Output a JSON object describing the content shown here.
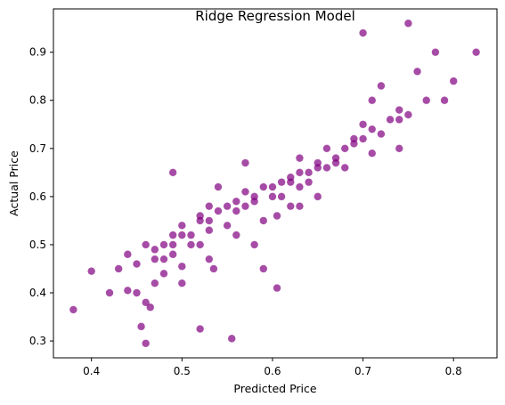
{
  "chart_data": {
    "type": "scatter",
    "title": "Ridge Regression Model",
    "xlabel": "Predicted Price",
    "ylabel": "Actual Price",
    "xlim": [
      0.358,
      0.848
    ],
    "ylim": [
      0.265,
      0.99
    ],
    "xticks": [
      0.4,
      0.5,
      0.6,
      0.7,
      0.8
    ],
    "xtick_labels": [
      "0.4",
      "0.5",
      "0.6",
      "0.7",
      "0.8"
    ],
    "yticks": [
      0.3,
      0.4,
      0.5,
      0.6,
      0.7,
      0.8,
      0.9
    ],
    "ytick_labels": [
      "0.3",
      "0.4",
      "0.5",
      "0.6",
      "0.7",
      "0.8",
      "0.9"
    ],
    "grid": false,
    "marker_color": "#800080",
    "marker_alpha": 0.7,
    "series": [
      {
        "x": [
          0.38,
          0.4,
          0.42,
          0.43,
          0.44,
          0.44,
          0.45,
          0.455,
          0.46,
          0.46,
          0.465,
          0.47,
          0.47,
          0.48,
          0.48,
          0.49,
          0.49,
          0.49,
          0.5,
          0.5,
          0.51,
          0.52,
          0.52,
          0.53,
          0.53,
          0.535,
          0.54,
          0.55,
          0.555,
          0.56,
          0.57,
          0.58,
          0.58,
          0.59,
          0.59,
          0.6,
          0.605,
          0.61,
          0.62,
          0.63,
          0.63,
          0.64,
          0.65,
          0.66,
          0.67,
          0.69,
          0.7,
          0.7,
          0.71,
          0.72,
          0.74,
          0.75,
          0.76,
          0.78,
          0.79,
          0.825,
          0.45,
          0.47,
          0.48,
          0.49,
          0.5,
          0.51,
          0.52,
          0.52,
          0.53,
          0.54,
          0.55,
          0.56,
          0.57,
          0.58,
          0.6,
          0.61,
          0.62,
          0.63,
          0.64,
          0.65,
          0.66,
          0.67,
          0.68,
          0.69,
          0.7,
          0.71,
          0.72,
          0.73,
          0.74,
          0.75,
          0.77,
          0.8,
          0.46,
          0.5,
          0.53,
          0.56,
          0.59,
          0.62,
          0.65,
          0.68,
          0.71,
          0.74,
          0.57,
          0.605,
          0.63
        ],
        "y": [
          0.365,
          0.445,
          0.4,
          0.45,
          0.48,
          0.405,
          0.4,
          0.33,
          0.295,
          0.5,
          0.37,
          0.42,
          0.47,
          0.44,
          0.5,
          0.48,
          0.65,
          0.52,
          0.52,
          0.455,
          0.5,
          0.325,
          0.55,
          0.53,
          0.58,
          0.45,
          0.62,
          0.54,
          0.305,
          0.57,
          0.58,
          0.6,
          0.5,
          0.62,
          0.45,
          0.6,
          0.41,
          0.63,
          0.64,
          0.68,
          0.62,
          0.65,
          0.66,
          0.7,
          0.67,
          0.72,
          0.94,
          0.75,
          0.8,
          0.83,
          0.76,
          0.96,
          0.86,
          0.9,
          0.8,
          0.9,
          0.46,
          0.49,
          0.47,
          0.5,
          0.54,
          0.52,
          0.56,
          0.5,
          0.55,
          0.57,
          0.58,
          0.59,
          0.61,
          0.59,
          0.62,
          0.6,
          0.63,
          0.65,
          0.63,
          0.67,
          0.66,
          0.68,
          0.7,
          0.71,
          0.72,
          0.74,
          0.73,
          0.76,
          0.78,
          0.77,
          0.8,
          0.84,
          0.38,
          0.42,
          0.47,
          0.52,
          0.55,
          0.58,
          0.6,
          0.66,
          0.69,
          0.7,
          0.67,
          0.56,
          0.58
        ]
      }
    ]
  }
}
